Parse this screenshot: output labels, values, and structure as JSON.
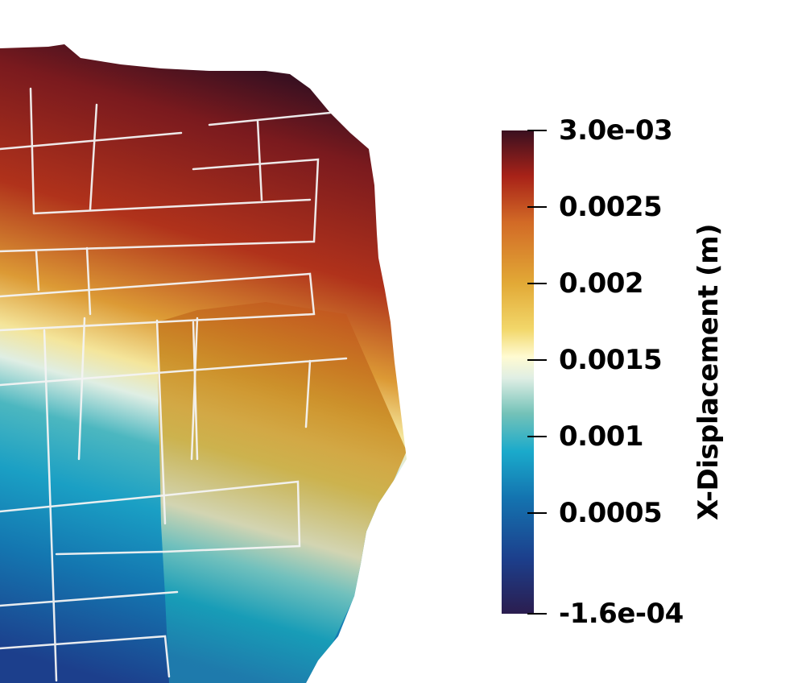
{
  "colorbar": {
    "title": "X-Displacement (m)",
    "min": -0.00016,
    "max": 0.003,
    "ticks": [
      {
        "value": 0.003,
        "label": "3.0e-03"
      },
      {
        "value": 0.0025,
        "label": "0.0025"
      },
      {
        "value": 0.002,
        "label": "0.002"
      },
      {
        "value": 0.0015,
        "label": "0.0015"
      },
      {
        "value": 0.001,
        "label": "0.001"
      },
      {
        "value": 0.0005,
        "label": "0.0005"
      },
      {
        "value": -0.00016,
        "label": "-1.6e-04"
      }
    ],
    "stops": [
      {
        "value": -0.00016,
        "color": "#2b1d4f"
      },
      {
        "value": 0.0002,
        "color": "#1c3f8c"
      },
      {
        "value": 0.0006,
        "color": "#1474b0"
      },
      {
        "value": 0.0009,
        "color": "#1aaacb"
      },
      {
        "value": 0.00115,
        "color": "#74c2b8"
      },
      {
        "value": 0.00138,
        "color": "#dfeee4"
      },
      {
        "value": 0.00152,
        "color": "#fffbd2"
      },
      {
        "value": 0.0017,
        "color": "#f2d76a"
      },
      {
        "value": 0.002,
        "color": "#e2a936"
      },
      {
        "value": 0.0024,
        "color": "#d26a26"
      },
      {
        "value": 0.0027,
        "color": "#a82218"
      },
      {
        "value": 0.003,
        "color": "#3a1020"
      }
    ]
  },
  "colors": {
    "background": "#ffffff",
    "fracture_lines": "#f4f4f4"
  }
}
